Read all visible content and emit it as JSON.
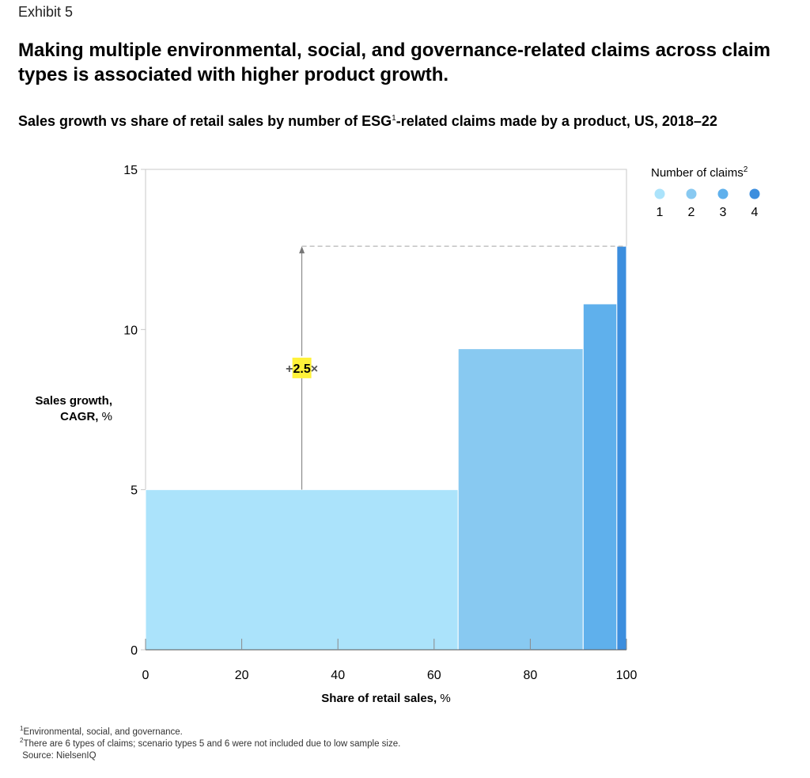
{
  "header": {
    "exhibit": "Exhibit 5",
    "title": "Making multiple environmental, social, and governance-related claims across claim types is associated with higher product growth.",
    "subtitle_pre": "Sales growth vs share of retail sales by number of ESG",
    "subtitle_sup": "1",
    "subtitle_post": "-related claims made by a product, US, 2018–22"
  },
  "axis_labels": {
    "y_bold": "Sales growth,",
    "y_rest_bold": "CAGR,",
    "y_unit": "%",
    "x_bold": "Share of retail sales,",
    "x_unit": "%"
  },
  "legend": {
    "title": "Number of claims",
    "title_sup": "2"
  },
  "annotation": {
    "prefix": "+",
    "value": "2.5",
    "suffix": "×"
  },
  "footnotes": {
    "note1_sup": "1",
    "note1": "Environmental, social, and governance.",
    "note2_sup": "2",
    "note2": "There are 6 types of claims; scenario types 5 and 6 were not included due to low sample size.",
    "source": "Source: NielsenIQ"
  },
  "chart_data": {
    "type": "bar",
    "subtype": "variable-width (marimekko)",
    "xlabel": "Share of retail sales, %",
    "ylabel": "Sales growth, CAGR, %",
    "xlim": [
      0,
      100
    ],
    "ylim": [
      0,
      15
    ],
    "x_ticks": [
      0,
      20,
      40,
      60,
      80,
      100
    ],
    "y_ticks": [
      0,
      5,
      10,
      15
    ],
    "series": [
      {
        "name": "1",
        "x_start": 0,
        "x_end": 65,
        "value": 5.0,
        "color": "#abe3fb"
      },
      {
        "name": "2",
        "x_start": 65,
        "x_end": 91,
        "value": 9.4,
        "color": "#88c9f1"
      },
      {
        "name": "3",
        "x_start": 91,
        "x_end": 98,
        "value": 10.8,
        "color": "#5fb0ec"
      },
      {
        "name": "4",
        "x_start": 98,
        "x_end": 100,
        "value": 12.6,
        "color": "#3c8ede"
      }
    ],
    "annotation_x": 32.5,
    "annotation_from": 5.0,
    "annotation_to": 12.6
  },
  "colors": {
    "highlight": "#fff23a",
    "frame": "#c8c8c8",
    "text": "#000000"
  }
}
